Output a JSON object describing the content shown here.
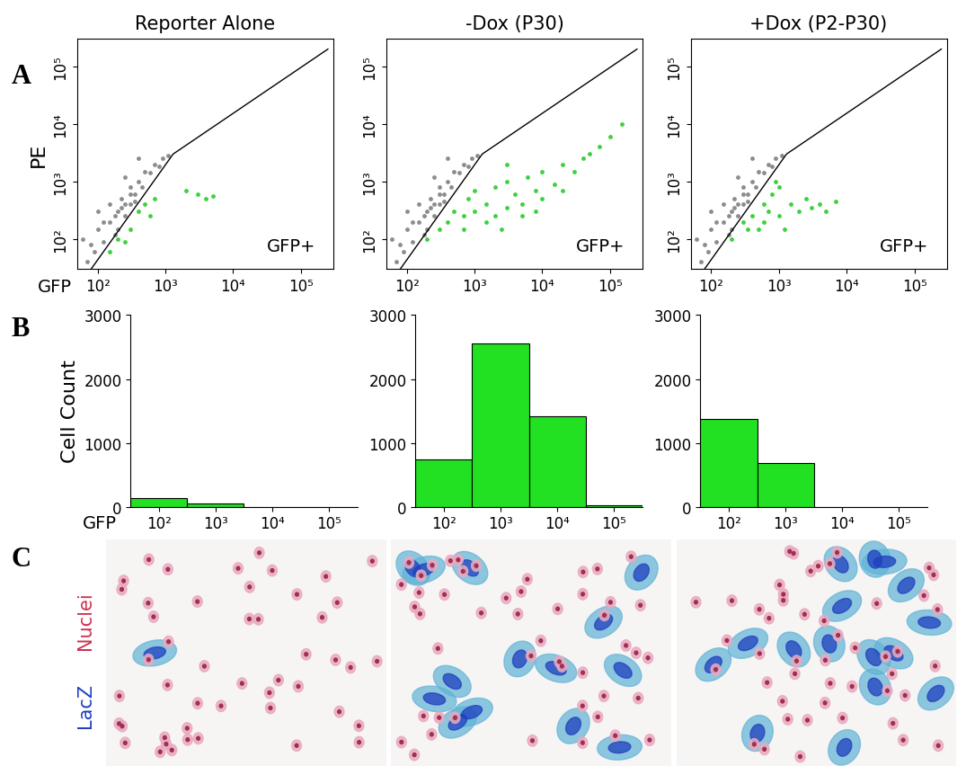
{
  "panel_labels": [
    "A",
    "B",
    "C"
  ],
  "chart_data": [
    {
      "type": "scatter",
      "title": "Reporter Alone",
      "x_label": "GFP",
      "y_label": "PE",
      "annotation": "GFP+",
      "log": true,
      "xlim": [
        50,
        300000
      ],
      "ylim": [
        30,
        300000
      ],
      "xticks": [
        {
          "value": 100,
          "label": "10²"
        },
        {
          "value": 1000,
          "label": "10³"
        },
        {
          "value": 10000,
          "label": "10⁴"
        },
        {
          "value": 100000,
          "label": "10⁵"
        }
      ],
      "yticks": [
        {
          "value": 100,
          "label": "10²"
        },
        {
          "value": 1000,
          "label": "10³"
        },
        {
          "value": 10000,
          "label": "10⁴"
        },
        {
          "value": 100000,
          "label": "10⁵"
        }
      ],
      "series": [
        {
          "type": "scatter",
          "color": "#8c8c8c",
          "marker": "o",
          "x": [
            70,
            90,
            100,
            120,
            150,
            180,
            200,
            220,
            250,
            300,
            300,
            350,
            400,
            450,
            500,
            600,
            700,
            800,
            150,
            100,
            250,
            400,
            900,
            1100,
            200,
            350,
            120,
            180,
            250,
            220,
            80,
            60,
            300
          ],
          "values": [
            40,
            60,
            150,
            90,
            200,
            120,
            300,
            500,
            250,
            400,
            800,
            600,
            1000,
            800,
            1500,
            1400,
            2000,
            1800,
            400,
            300,
            1200,
            2500,
            2500,
            2800,
            150,
            450,
            200,
            250,
            400,
            350,
            80,
            100,
            600
          ]
        },
        {
          "type": "scatter",
          "color": "#3cd23c",
          "marker": "o",
          "x": [
            150,
            200,
            250,
            300,
            400,
            500,
            600,
            700,
            2000,
            3000,
            4000,
            5000
          ],
          "values": [
            60,
            100,
            90,
            150,
            300,
            400,
            250,
            500,
            700,
            600,
            500,
            550
          ]
        },
        {
          "type": "line",
          "color": "#000000",
          "line_style": "solid",
          "x": [
            80,
            1300,
            250000
          ],
          "values": [
            30,
            3000,
            200000
          ]
        }
      ]
    },
    {
      "type": "scatter",
      "title": "-Dox (P30)",
      "annotation": "GFP+",
      "log": true,
      "xlim": [
        50,
        300000
      ],
      "ylim": [
        30,
        300000
      ],
      "xticks": [
        {
          "value": 100,
          "label": "10²"
        },
        {
          "value": 1000,
          "label": "10³"
        },
        {
          "value": 10000,
          "label": "10⁴"
        },
        {
          "value": 100000,
          "label": "10⁵"
        }
      ],
      "yticks": [
        {
          "value": 100,
          "label": "10²"
        },
        {
          "value": 1000,
          "label": "10³"
        },
        {
          "value": 10000,
          "label": "10⁴"
        },
        {
          "value": 100000,
          "label": "10⁵"
        }
      ],
      "series": [
        {
          "type": "scatter",
          "color": "#8c8c8c",
          "marker": "o",
          "x": [
            70,
            90,
            100,
            120,
            150,
            180,
            200,
            220,
            250,
            300,
            300,
            350,
            400,
            450,
            500,
            600,
            700,
            800,
            150,
            100,
            250,
            400,
            900,
            1100,
            200,
            350,
            120,
            180,
            250,
            220,
            80,
            60,
            300
          ],
          "values": [
            40,
            60,
            150,
            90,
            200,
            120,
            300,
            500,
            250,
            400,
            800,
            600,
            1000,
            800,
            1500,
            1400,
            2000,
            1800,
            400,
            300,
            1200,
            2500,
            2500,
            2800,
            150,
            450,
            200,
            250,
            400,
            350,
            80,
            100,
            600
          ]
        },
        {
          "type": "scatter",
          "color": "#3cd23c",
          "marker": "o",
          "x": [
            200,
            300,
            400,
            500,
            700,
            800,
            1000,
            1000,
            1500,
            2000,
            2000,
            3000,
            3000,
            4000,
            5000,
            6000,
            8000,
            10000,
            10000,
            15000,
            20000,
            20000,
            30000,
            40000,
            50000,
            70000,
            100000,
            150000,
            1500,
            2500,
            5000,
            8000,
            700,
            3000
          ],
          "values": [
            100,
            150,
            200,
            300,
            250,
            500,
            300,
            700,
            400,
            250,
            800,
            350,
            1000,
            600,
            400,
            1200,
            700,
            500,
            1500,
            900,
            700,
            2000,
            1500,
            2500,
            3000,
            4000,
            6000,
            10000,
            200,
            150,
            250,
            300,
            150,
            2000
          ]
        },
        {
          "type": "line",
          "color": "#000000",
          "line_style": "solid",
          "x": [
            80,
            1300,
            250000
          ],
          "values": [
            30,
            3000,
            200000
          ]
        }
      ]
    },
    {
      "type": "scatter",
      "title": "+Dox (P2-P30)",
      "annotation": "GFP+",
      "log": true,
      "xlim": [
        50,
        300000
      ],
      "ylim": [
        30,
        300000
      ],
      "xticks": [
        {
          "value": 100,
          "label": "10²"
        },
        {
          "value": 1000,
          "label": "10³"
        },
        {
          "value": 10000,
          "label": "10⁴"
        },
        {
          "value": 100000,
          "label": "10⁵"
        }
      ],
      "yticks": [
        {
          "value": 100,
          "label": "10²"
        },
        {
          "value": 1000,
          "label": "10³"
        },
        {
          "value": 10000,
          "label": "10⁴"
        },
        {
          "value": 100000,
          "label": "10⁵"
        }
      ],
      "series": [
        {
          "type": "scatter",
          "color": "#8c8c8c",
          "marker": "o",
          "x": [
            70,
            90,
            100,
            120,
            150,
            180,
            200,
            220,
            250,
            300,
            300,
            350,
            400,
            450,
            500,
            600,
            700,
            800,
            150,
            100,
            250,
            400,
            900,
            1100,
            200,
            350,
            120,
            180,
            250,
            220,
            80,
            60,
            300
          ],
          "values": [
            40,
            60,
            150,
            90,
            200,
            120,
            300,
            500,
            250,
            400,
            800,
            600,
            1000,
            800,
            1500,
            1400,
            2000,
            1800,
            400,
            300,
            1200,
            2500,
            2500,
            2800,
            150,
            450,
            200,
            250,
            400,
            350,
            80,
            100,
            600
          ]
        },
        {
          "type": "scatter",
          "color": "#3cd23c",
          "marker": "o",
          "x": [
            200,
            300,
            400,
            500,
            600,
            700,
            800,
            1000,
            1000,
            1500,
            2000,
            2500,
            3000,
            4000,
            5000,
            7000,
            600,
            900,
            1200,
            350
          ],
          "values": [
            100,
            200,
            250,
            150,
            400,
            300,
            600,
            250,
            800,
            400,
            300,
            500,
            350,
            400,
            300,
            450,
            200,
            1000,
            150,
            150
          ]
        },
        {
          "type": "line",
          "color": "#000000",
          "line_style": "solid",
          "x": [
            80,
            1300,
            250000
          ],
          "values": [
            30,
            3000,
            200000
          ]
        }
      ]
    },
    {
      "type": "bar",
      "x_label": "GFP",
      "y_label": "Cell Count",
      "color": "#22e022",
      "categories": [
        "10²",
        "10³",
        "10⁴",
        "10⁵"
      ],
      "values": [
        130,
        55,
        0,
        0
      ],
      "ylim": [
        0,
        3000
      ],
      "yticks": [
        0,
        1000,
        2000,
        3000
      ]
    },
    {
      "type": "bar",
      "color": "#22e022",
      "categories": [
        "10²",
        "10³",
        "10⁴",
        "10⁵"
      ],
      "values": [
        740,
        2550,
        1420,
        30
      ],
      "ylim": [
        0,
        3000
      ],
      "yticks": [
        0,
        1000,
        2000,
        3000
      ]
    },
    {
      "type": "bar",
      "color": "#22e022",
      "categories": [
        "10²",
        "10³",
        "10⁴",
        "10⁵"
      ],
      "values": [
        1380,
        680,
        0,
        0
      ],
      "ylim": [
        0,
        3000
      ],
      "yticks": [
        0,
        1000,
        2000,
        3000
      ]
    }
  ],
  "images": {
    "legend": [
      {
        "text": "LacZ",
        "color": "#1f3fbf"
      },
      {
        "text": "Nuclei",
        "color": "#d0304f"
      }
    ],
    "panels": [
      {
        "lacz_cells": 1
      },
      {
        "lacz_cells": 14
      },
      {
        "lacz_cells": 16
      }
    ]
  }
}
